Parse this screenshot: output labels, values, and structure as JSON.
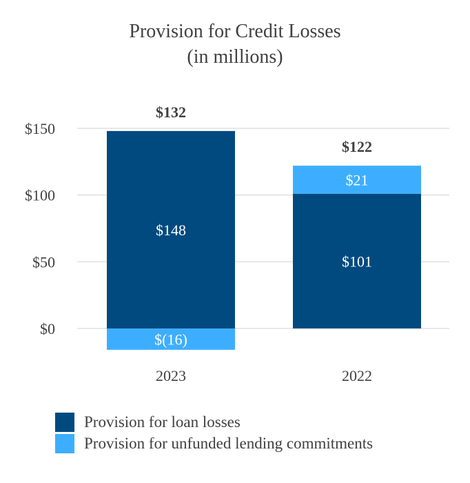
{
  "chart_data": {
    "type": "bar",
    "stacked": true,
    "title": "Provision for Credit Losses",
    "subtitle": "(in millions)",
    "categories": [
      "2023",
      "2022"
    ],
    "series": [
      {
        "name": "Provision for loan losses",
        "color": "#004a7f",
        "values": [
          148,
          101
        ],
        "labels": [
          "$148",
          "$101"
        ]
      },
      {
        "name": "Provision for unfunded lending commitments",
        "color": "#3daeff",
        "values": [
          -16,
          21
        ],
        "labels": [
          "$(16)",
          "$21"
        ]
      }
    ],
    "totals": [
      132,
      122
    ],
    "total_labels": [
      "$132",
      "$122"
    ],
    "ylim": [
      -16,
      150
    ],
    "yticks": [
      0,
      50,
      100,
      150
    ],
    "ytick_labels": [
      "$0",
      "$50",
      "$100",
      "$150"
    ],
    "xlabel": "",
    "ylabel": "",
    "grid": true,
    "legend_position": "bottom-left"
  }
}
